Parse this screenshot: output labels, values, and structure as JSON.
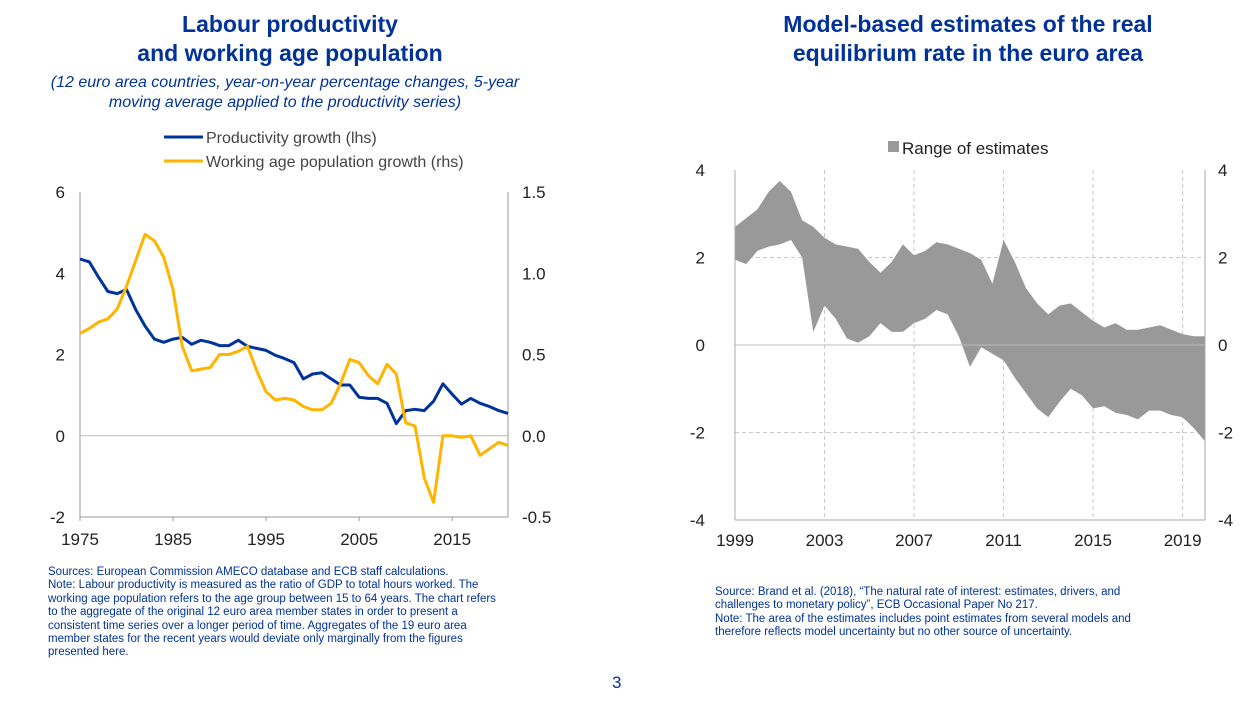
{
  "slide": {
    "page_number": "3"
  },
  "left": {
    "title_line1": "Labour productivity",
    "title_line2": "and working age population",
    "subtitle_line1": "(12 euro area countries, year-on-year percentage changes, 5-year",
    "subtitle_line2": "moving average applied to the productivity series)",
    "note_lines": [
      "Sources: European Commission AMECO database and ECB staff calculations.",
      "Note: Labour productivity is measured as the ratio of GDP to total hours worked. The",
      "working age population refers to the age group between 15 to 64 years. The chart refers",
      "to the aggregate of the original 12  euro area member states in order to present a",
      "consistent time series over a longer period of time. Aggregates of the 19 euro area",
      "member states for the recent years would deviate only marginally from the figures",
      "presented here."
    ]
  },
  "right": {
    "title_line1": "Model-based estimates of the real",
    "title_line2": "equilibrium rate in the euro area",
    "note_lines": [
      "Source: Brand et al. (2018), “The natural rate of interest: estimates, drivers, and",
      "challenges to monetary policy”, ECB Occasional Paper No 217.",
      "Note: The area of the estimates includes point estimates from  several models and",
      "therefore reflects model uncertainty but no other source of uncertainty."
    ]
  },
  "colors": {
    "title": "#003299",
    "productivity": "#003399",
    "population": "#FFB400",
    "range": "#999999"
  },
  "chart_data": [
    {
      "type": "line",
      "title": "Labour productivity and working age population",
      "legend": [
        "Productivity growth (lhs)",
        "Working age population growth (rhs)"
      ],
      "legend_position": "top",
      "grid": false,
      "x_ticks": [
        "1975",
        "1985",
        "1995",
        "2005",
        "2015"
      ],
      "xlim": [
        1975,
        2021
      ],
      "ylim_left": [
        -2,
        6
      ],
      "ylim_right": [
        -0.5,
        1.5
      ],
      "y_ticks_left": [
        "-2",
        "0",
        "2",
        "4",
        "6"
      ],
      "y_ticks_right": [
        "-0.5",
        "0.0",
        "0.5",
        "1.0",
        "1.5"
      ],
      "x": [
        1975,
        1976,
        1977,
        1978,
        1979,
        1980,
        1981,
        1982,
        1983,
        1984,
        1985,
        1986,
        1987,
        1988,
        1989,
        1990,
        1991,
        1992,
        1993,
        1994,
        1995,
        1996,
        1997,
        1998,
        1999,
        2000,
        2001,
        2002,
        2003,
        2004,
        2005,
        2006,
        2007,
        2008,
        2009,
        2010,
        2011,
        2012,
        2013,
        2014,
        2015,
        2016,
        2017,
        2018,
        2019,
        2020,
        2021
      ],
      "series": [
        {
          "name": "Productivity growth (lhs)",
          "axis": "left",
          "values": [
            4.35,
            4.28,
            3.9,
            3.55,
            3.5,
            3.6,
            3.1,
            2.7,
            2.38,
            2.3,
            2.38,
            2.42,
            2.25,
            2.35,
            2.3,
            2.22,
            2.22,
            2.35,
            2.2,
            2.15,
            2.1,
            1.98,
            1.9,
            1.8,
            1.4,
            1.52,
            1.55,
            1.4,
            1.25,
            1.25,
            0.95,
            0.92,
            0.92,
            0.8,
            0.3,
            0.62,
            0.65,
            0.62,
            0.85,
            1.28,
            1.02,
            0.78,
            0.92,
            0.8,
            0.72,
            0.62,
            0.55
          ]
        },
        {
          "name": "Working age population growth (rhs)",
          "axis": "right",
          "values": [
            0.63,
            0.66,
            0.7,
            0.72,
            0.78,
            0.92,
            1.08,
            1.24,
            1.2,
            1.1,
            0.9,
            0.55,
            0.4,
            0.41,
            0.42,
            0.5,
            0.5,
            0.52,
            0.55,
            0.4,
            0.27,
            0.22,
            0.23,
            0.22,
            0.18,
            0.16,
            0.16,
            0.2,
            0.32,
            0.47,
            0.45,
            0.37,
            0.32,
            0.44,
            0.38,
            0.08,
            0.06,
            -0.26,
            -0.41,
            0.0,
            0.0,
            -0.01,
            0.0,
            -0.12,
            -0.08,
            -0.04,
            -0.06
          ]
        }
      ]
    },
    {
      "type": "area",
      "title": "Model-based estimates of the real equilibrium rate in the euro area",
      "legend": [
        "Range of estimates"
      ],
      "legend_position": "top",
      "grid": true,
      "x_ticks": [
        "1999",
        "2003",
        "2007",
        "2011",
        "2015",
        "2019"
      ],
      "xlim": [
        1999,
        2020
      ],
      "ylim": [
        -4,
        4
      ],
      "y_ticks": [
        "-4",
        "-2",
        "0",
        "2",
        "4"
      ],
      "x": [
        1999,
        1999.5,
        2000,
        2000.5,
        2001,
        2001.5,
        2002,
        2002.5,
        2003,
        2003.5,
        2004,
        2004.5,
        2005,
        2005.5,
        2006,
        2006.5,
        2007,
        2007.5,
        2008,
        2008.5,
        2009,
        2009.5,
        2010,
        2010.5,
        2011,
        2011.5,
        2012,
        2012.5,
        2013,
        2013.5,
        2014,
        2014.5,
        2015,
        2015.5,
        2016,
        2016.5,
        2017,
        2017.5,
        2018,
        2018.5,
        2019,
        2019.5,
        2020
      ],
      "series": [
        {
          "name": "upper",
          "values": [
            2.7,
            2.9,
            3.1,
            3.5,
            3.75,
            3.5,
            2.85,
            2.7,
            2.45,
            2.3,
            2.25,
            2.2,
            1.9,
            1.65,
            1.9,
            2.3,
            2.05,
            2.15,
            2.35,
            2.3,
            2.2,
            2.1,
            1.95,
            1.4,
            2.4,
            1.9,
            1.3,
            0.95,
            0.7,
            0.9,
            0.95,
            0.75,
            0.55,
            0.4,
            0.5,
            0.35,
            0.35,
            0.4,
            0.45,
            0.35,
            0.25,
            0.2,
            0.2
          ]
        },
        {
          "name": "lower",
          "values": [
            1.95,
            1.85,
            2.15,
            2.25,
            2.3,
            2.4,
            2.0,
            0.3,
            0.9,
            0.6,
            0.15,
            0.05,
            0.2,
            0.5,
            0.3,
            0.3,
            0.5,
            0.6,
            0.8,
            0.7,
            0.2,
            -0.5,
            -0.05,
            -0.2,
            -0.35,
            -0.75,
            -1.1,
            -1.45,
            -1.65,
            -1.3,
            -1.0,
            -1.15,
            -1.45,
            -1.4,
            -1.55,
            -1.6,
            -1.7,
            -1.5,
            -1.5,
            -1.6,
            -1.65,
            -1.9,
            -2.2
          ]
        }
      ]
    }
  ]
}
